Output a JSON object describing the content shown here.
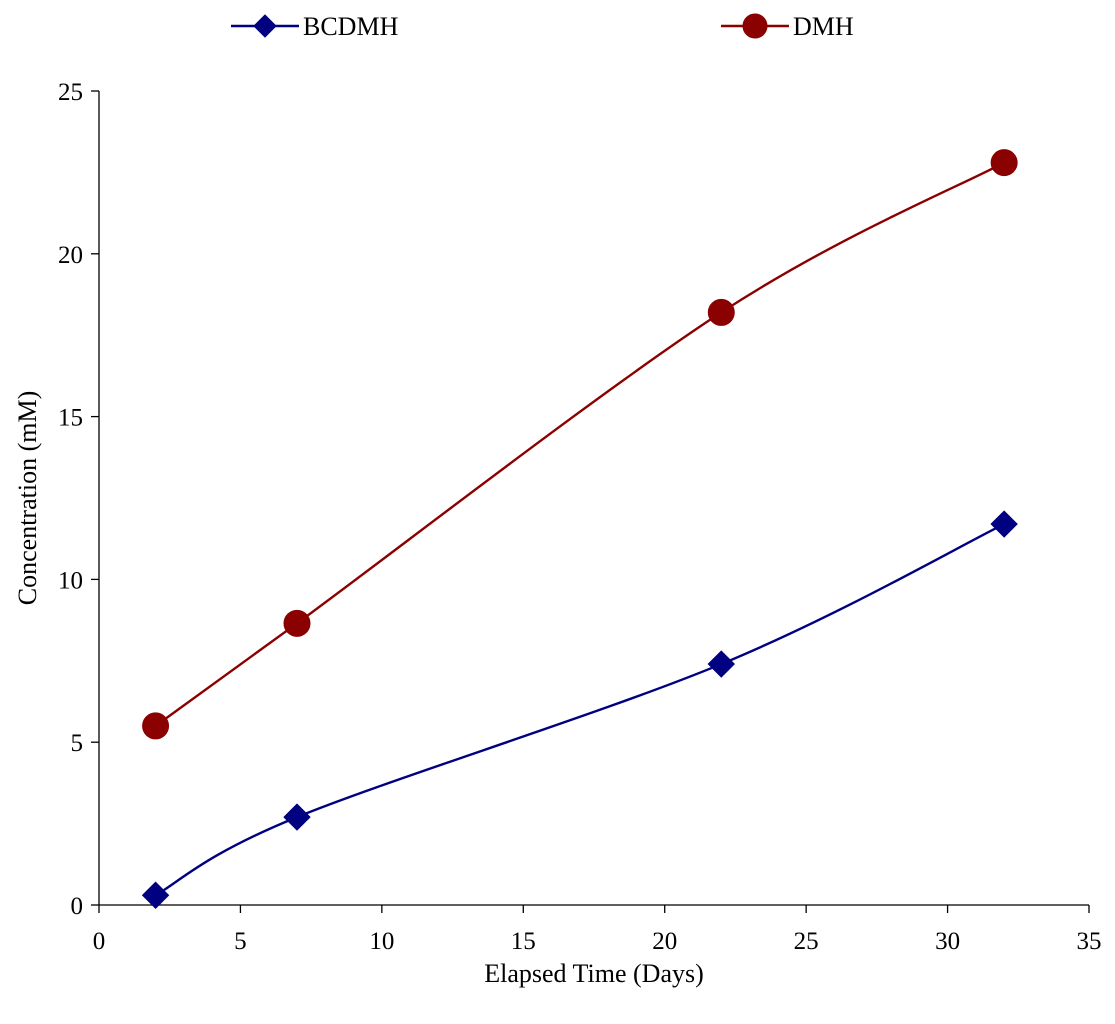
{
  "chart_data": {
    "type": "line",
    "title": "",
    "xlabel": "Elapsed Time (Days)",
    "ylabel": "Concentration (mM)",
    "xlim": [
      0,
      35
    ],
    "ylim": [
      0,
      25
    ],
    "x_ticks": [
      "0",
      "5",
      "10",
      "15",
      "20",
      "25",
      "30",
      "35"
    ],
    "y_ticks": [
      "0",
      "5",
      "10",
      "15",
      "20",
      "25"
    ],
    "grid": false,
    "legend_position": "top",
    "smoothed": true,
    "series": [
      {
        "name": "BCDMH",
        "color": "#000080",
        "marker": "diamond",
        "x": [
          2,
          7,
          22,
          32
        ],
        "y": [
          0.3,
          2.7,
          7.4,
          11.7
        ]
      },
      {
        "name": "DMH",
        "color": "#8B0000",
        "marker": "circle",
        "x": [
          2,
          7,
          22,
          32
        ],
        "y": [
          5.5,
          8.65,
          18.2,
          22.8
        ]
      }
    ]
  }
}
